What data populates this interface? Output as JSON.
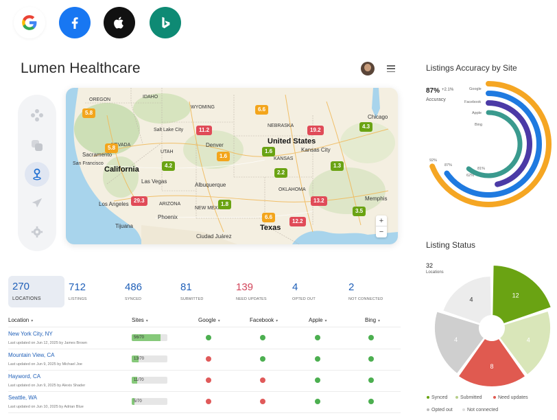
{
  "header": {
    "title": "Lumen Healthcare"
  },
  "map": {
    "labels": [
      {
        "text": "OREGON",
        "size": "sm"
      },
      {
        "text": "IDAHO",
        "size": "sm"
      },
      {
        "text": "WYOMING",
        "size": "sm"
      },
      {
        "text": "Salt Lake City",
        "size": "sm"
      },
      {
        "text": "NEVADA",
        "size": "sm"
      },
      {
        "text": "UTAH",
        "size": "sm"
      },
      {
        "text": "Denver",
        "size": "md"
      },
      {
        "text": "NEBRASKA",
        "size": "sm"
      },
      {
        "text": "United States",
        "size": "big"
      },
      {
        "text": "Chicago",
        "size": "md"
      },
      {
        "text": "Sacramento",
        "size": "md"
      },
      {
        "text": "San Francisco",
        "size": "sm"
      },
      {
        "text": "California",
        "size": "big"
      },
      {
        "text": "Las Vegas",
        "size": "md"
      },
      {
        "text": "Los Angeles",
        "size": "md"
      },
      {
        "text": "ARIZONA",
        "size": "sm"
      },
      {
        "text": "Phoenix",
        "size": "md"
      },
      {
        "text": "Tijuana",
        "size": "md"
      },
      {
        "text": "Albuquerque",
        "size": "md"
      },
      {
        "text": "NEW MEXICO",
        "size": "sm"
      },
      {
        "text": "KANSAS",
        "size": "sm"
      },
      {
        "text": "Kansas City",
        "size": "md"
      },
      {
        "text": "OKLAHOMA",
        "size": "sm"
      },
      {
        "text": "Memphis",
        "size": "md"
      },
      {
        "text": "Texas",
        "size": "big"
      },
      {
        "text": "Ciudad Juárez",
        "size": "md"
      }
    ],
    "markers": [
      {
        "value": "5.8",
        "color": "orange"
      },
      {
        "value": "5.8",
        "color": "orange"
      },
      {
        "value": "11.2",
        "color": "red"
      },
      {
        "value": "19.2",
        "color": "red"
      },
      {
        "value": "4.3",
        "color": "green"
      },
      {
        "value": "6.6",
        "color": "orange"
      },
      {
        "value": "1.6",
        "color": "green"
      },
      {
        "value": "1.6",
        "color": "orange"
      },
      {
        "value": "4.2",
        "color": "green"
      },
      {
        "value": "2.2",
        "color": "green"
      },
      {
        "value": "1.3",
        "color": "green"
      },
      {
        "value": "29.3",
        "color": "red"
      },
      {
        "value": "1.8",
        "color": "green"
      },
      {
        "value": "13.2",
        "color": "red"
      },
      {
        "value": "3.5",
        "color": "green"
      },
      {
        "value": "6.6",
        "color": "orange"
      },
      {
        "value": "12.2",
        "color": "red"
      }
    ],
    "zoom_in": "+",
    "zoom_out": "−"
  },
  "stats": [
    {
      "value": "270",
      "label": "LOCATIONS"
    },
    {
      "value": "712",
      "label": "LISTINGS"
    },
    {
      "value": "486",
      "label": "SYNCED"
    },
    {
      "value": "81",
      "label": "SUBMITTED"
    },
    {
      "value": "139",
      "label": "NEED UPDATES"
    },
    {
      "value": "4",
      "label": "OPTED OUT"
    },
    {
      "value": "2",
      "label": "NOT CONNECTED"
    }
  ],
  "table": {
    "columns": [
      "Location",
      "Sites",
      "Google",
      "Facebook",
      "Apple",
      "Bing"
    ],
    "rows": [
      {
        "name": "New York City, NY",
        "updated": "Last updated on Jun 12, 2025 by James Brown",
        "sites": "56/70",
        "sites_fraction": 0.8,
        "status": [
          "ok",
          "ok",
          "ok",
          "ok"
        ]
      },
      {
        "name": "Mountain View, CA",
        "updated": "Last updated on Jun 9, 2025 by Michael Joe",
        "sites": "13/70",
        "sites_fraction": 0.19,
        "status": [
          "err",
          "ok",
          "ok",
          "ok"
        ]
      },
      {
        "name": "Hayword, CA",
        "updated": "Last updated on Jun 9, 2025 by Alexis Shader",
        "sites": "11/70",
        "sites_fraction": 0.16,
        "status": [
          "err",
          "err",
          "ok",
          "ok"
        ]
      },
      {
        "name": "Seattle, WA",
        "updated": "Last updated on Jun 10, 2025 by Adrian Blue",
        "sites": "5/70",
        "sites_fraction": 0.07,
        "status": [
          "err",
          "err",
          "ok",
          "ok"
        ]
      }
    ]
  },
  "accuracy": {
    "title": "Listings Accuracy by Site",
    "value": "87%",
    "delta": "+2.1%",
    "label": "Accuracy",
    "chart_data": {
      "type": "radial-bar",
      "series": [
        {
          "name": "Google",
          "value": 92,
          "value_label": "92%",
          "color": "#f5a623"
        },
        {
          "name": "Facebook",
          "value": 87,
          "value_label": "87%",
          "color": "#1f7ae0"
        },
        {
          "name": "Apple",
          "value": 62,
          "value_label": "62%",
          "color": "#4b3aa6"
        },
        {
          "name": "Bing",
          "value": 81,
          "value_label": "81%",
          "color": "#3a9a8e"
        }
      ]
    }
  },
  "listing_status": {
    "title": "Listing Status",
    "count": "32",
    "count_label": "Locations",
    "chart_data": {
      "type": "pie",
      "slices": [
        {
          "name": "Synced",
          "value": 12,
          "color": "#6aa313",
          "label_color": "#ffffff"
        },
        {
          "name": "Submitted",
          "value": 4,
          "color": "#d9e6b9",
          "label_color": "#ffffff"
        },
        {
          "name": "Need updates",
          "value": 8,
          "color": "#e05a50",
          "label_color": "#ffffff"
        },
        {
          "name": "Opted out",
          "value": 4,
          "color": "#cfcfcf",
          "label_color": "#ffffff"
        },
        {
          "name": "Not connected",
          "value": 4,
          "color": "#ececec",
          "label_color": "#333333"
        }
      ],
      "legend": [
        {
          "text": "Synced",
          "color": "#6aa313"
        },
        {
          "text": "Submitted",
          "color": "#b7cf8a"
        },
        {
          "text": "Need updates",
          "color": "#e05a50"
        },
        {
          "text": "Opted out",
          "color": "#bdbdbd"
        },
        {
          "text": "Not connected",
          "color": "#dddddd"
        }
      ]
    }
  }
}
